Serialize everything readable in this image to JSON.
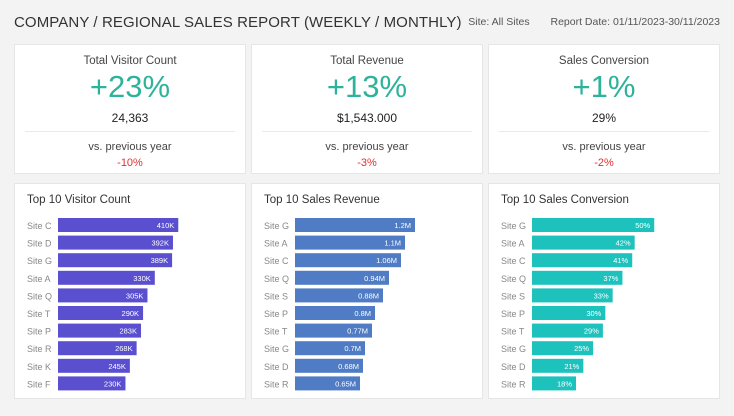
{
  "header": {
    "title": "COMPANY / REGIONAL SALES REPORT (WEEKLY / MONTHLY)",
    "site": "Site: All Sites",
    "report_date": "Report Date: 01/11/2023-30/11/2023"
  },
  "kpis": [
    {
      "label": "Total Visitor Count",
      "big": "+23%",
      "value": "24,363",
      "vs": "vs. previous year",
      "delta": "-10%"
    },
    {
      "label": "Total Revenue",
      "big": "+13%",
      "value": "$1,543.000",
      "vs": "vs. previous year",
      "delta": "-3%"
    },
    {
      "label": "Sales Conversion",
      "big": "+1%",
      "value": "29%",
      "vs": "vs. previous year",
      "delta": "-2%"
    }
  ],
  "colors": {
    "accent": "#2db39b",
    "negative": "#e03030",
    "visitor_bar": "#5a4fcf",
    "revenue_bar": "#4f7cc4",
    "conversion_bar": "#1ec2bd"
  },
  "chart_data": [
    {
      "type": "bar",
      "orientation": "horizontal",
      "title": "Top 10 Visitor Count",
      "color": "#5a4fcf",
      "categories": [
        "Site C",
        "Site D",
        "Site G",
        "Site A",
        "Site Q",
        "Site T",
        "Site P",
        "Site R",
        "Site K",
        "Site F"
      ],
      "values": [
        410000,
        392000,
        389000,
        330000,
        305000,
        290000,
        283000,
        268000,
        245000,
        230000
      ],
      "labels": [
        "410K",
        "392K",
        "389K",
        "330K",
        "305K",
        "290K",
        "283K",
        "268K",
        "245K",
        "230K"
      ],
      "xlim": [
        0,
        600000
      ],
      "grid": false
    },
    {
      "type": "bar",
      "orientation": "horizontal",
      "title": "Top 10 Sales Revenue",
      "color": "#4f7cc4",
      "categories": [
        "Site G",
        "Site A",
        "Site C",
        "Site Q",
        "Site S",
        "Site P",
        "Site T",
        "Site G",
        "Site D",
        "Site R"
      ],
      "values": [
        1.2,
        1.1,
        1.06,
        0.94,
        0.88,
        0.8,
        0.77,
        0.7,
        0.68,
        0.65
      ],
      "labels": [
        "1.2M",
        "1.1M",
        "1.06M",
        "0.94M",
        "0.88M",
        "0.8M",
        "0.77M",
        "0.7M",
        "0.68M",
        "0.65M"
      ],
      "xlim": [
        0,
        1.76
      ],
      "grid": false
    },
    {
      "type": "bar",
      "orientation": "horizontal",
      "title": "Top 10 Sales Conversion",
      "color": "#1ec2bd",
      "categories": [
        "Site G",
        "Site A",
        "Site C",
        "Site Q",
        "Site S",
        "Site P",
        "Site T",
        "Site G",
        "Site D",
        "Site R"
      ],
      "values": [
        50,
        42,
        41,
        37,
        33,
        30,
        29,
        25,
        21,
        18
      ],
      "labels": [
        "50%",
        "42%",
        "41%",
        "37%",
        "33%",
        "30%",
        "29%",
        "25%",
        "21%",
        "18%"
      ],
      "xlim": [
        0,
        72
      ],
      "grid": false
    }
  ]
}
